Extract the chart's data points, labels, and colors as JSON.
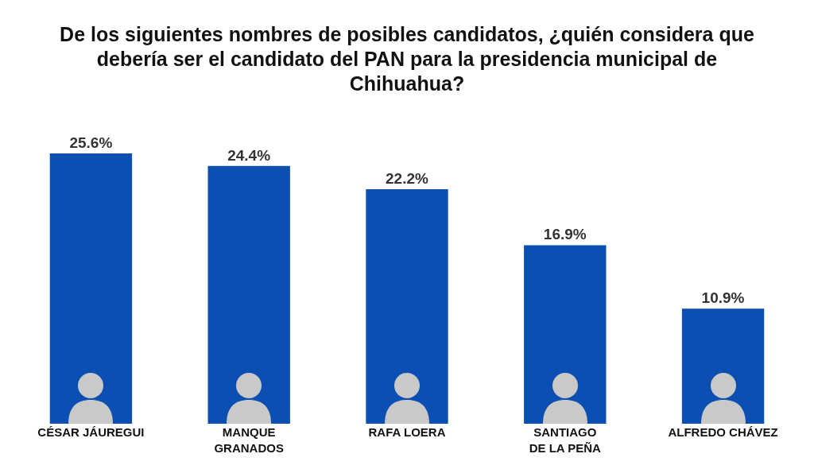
{
  "chart_data": {
    "type": "bar",
    "title": "De los siguientes nombres de posibles candidatos, ¿quién considera que debería ser el candidato del PAN para la presidencia municipal de Chihuahua?",
    "categories": [
      "CÉSAR JÁUREGUI",
      "MANQUE GRANADOS",
      "RAFA LOERA",
      "SANTIAGO DE LA PEÑA",
      "ALFREDO CHÁVEZ"
    ],
    "values": [
      25.6,
      24.4,
      22.2,
      16.9,
      10.9
    ],
    "value_labels": [
      "25.6%",
      "24.4%",
      "22.2%",
      "16.9%",
      "10.9%"
    ],
    "color": "#0b4fb3",
    "grid": false
  }
}
